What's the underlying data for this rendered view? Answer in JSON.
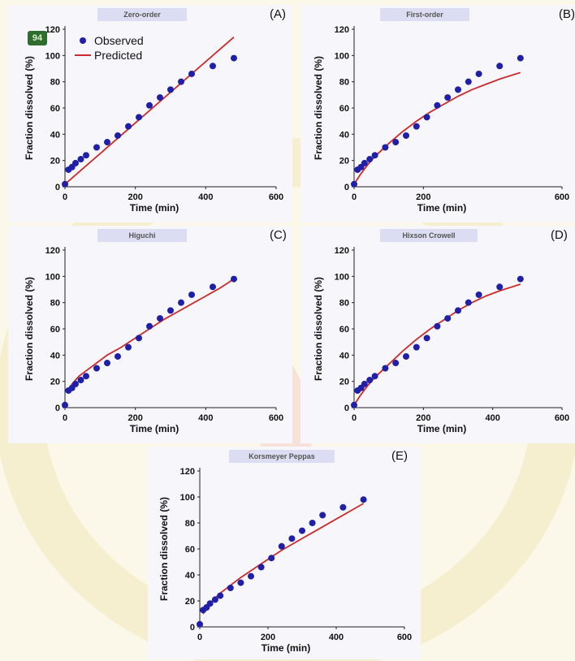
{
  "badge": "94",
  "colors": {
    "observed": "#1f1fa8",
    "predicted": "#cc2a2a",
    "panel_bg": "#f6f6fb",
    "title_bg": "#dcdcf2"
  },
  "legend": {
    "observed": "Observed",
    "predicted": "Predicted",
    "placement": "top-left"
  },
  "chart_data": [
    {
      "type": "scatter",
      "letter": "(A)",
      "title": "Zero-order",
      "xlabel": "Time (min)",
      "ylabel": "Fraction dissolved (%)",
      "xlim": [
        0,
        600
      ],
      "ylim": [
        0,
        120
      ],
      "xticks": [
        0,
        200,
        400,
        600
      ],
      "yticks": [
        0,
        20,
        40,
        60,
        80,
        100,
        120
      ],
      "series": [
        {
          "name": "Observed",
          "kind": "points",
          "x": [
            0,
            10,
            20,
            30,
            45,
            60,
            90,
            120,
            150,
            180,
            210,
            240,
            270,
            300,
            330,
            360,
            420,
            480
          ],
          "y": [
            2,
            13,
            15,
            18,
            21,
            24,
            30,
            34,
            39,
            46,
            53,
            62,
            68,
            74,
            80,
            86,
            92,
            98
          ]
        },
        {
          "name": "Predicted",
          "kind": "line",
          "x": [
            0,
            480
          ],
          "y": [
            2,
            114
          ]
        }
      ]
    },
    {
      "type": "scatter",
      "letter": "(B)",
      "title": "First-order",
      "xlabel": "Time (min)",
      "ylabel": "Fraction dissolved (%)",
      "xlim": [
        0,
        600
      ],
      "ylim": [
        0,
        120
      ],
      "xticks": [
        0,
        200,
        600
      ],
      "yticks": [
        0,
        20,
        40,
        60,
        80,
        100,
        120
      ],
      "series": [
        {
          "name": "Observed",
          "kind": "points",
          "x": [
            0,
            10,
            20,
            30,
            45,
            60,
            90,
            120,
            150,
            180,
            210,
            240,
            270,
            300,
            330,
            360,
            420,
            480
          ],
          "y": [
            2,
            13,
            15,
            18,
            21,
            24,
            30,
            34,
            39,
            46,
            53,
            62,
            68,
            74,
            80,
            86,
            92,
            98
          ]
        },
        {
          "name": "Predicted",
          "kind": "line",
          "x": [
            0,
            20,
            40,
            60,
            80,
            100,
            140,
            180,
            220,
            260,
            300,
            340,
            380,
            420,
            480
          ],
          "y": [
            2,
            10,
            17,
            23,
            28,
            33,
            42,
            50,
            57,
            63,
            69,
            74,
            78,
            82,
            87
          ]
        }
      ]
    },
    {
      "type": "scatter",
      "letter": "(C)",
      "title": "Higuchi",
      "xlabel": "Time (min)",
      "ylabel": "Fraction dissolved (%)",
      "xlim": [
        0,
        600
      ],
      "ylim": [
        0,
        120
      ],
      "xticks": [
        0,
        200,
        400,
        600
      ],
      "yticks": [
        0,
        20,
        40,
        60,
        80,
        100,
        120
      ],
      "series": [
        {
          "name": "Observed",
          "kind": "points",
          "x": [
            0,
            10,
            20,
            30,
            45,
            60,
            90,
            120,
            150,
            180,
            210,
            240,
            270,
            300,
            330,
            360,
            420,
            480
          ],
          "y": [
            2,
            13,
            15,
            18,
            21,
            24,
            30,
            34,
            39,
            46,
            53,
            62,
            68,
            74,
            80,
            86,
            92,
            98
          ]
        },
        {
          "name": "Predicted",
          "kind": "line",
          "x": [
            10,
            20,
            40,
            60,
            90,
            120,
            160,
            200,
            240,
            280,
            320,
            360,
            400,
            440,
            480
          ],
          "y": [
            12,
            18,
            24,
            28,
            34,
            40,
            46,
            53,
            60,
            67,
            73,
            79,
            85,
            91,
            98
          ]
        }
      ]
    },
    {
      "type": "scatter",
      "letter": "(D)",
      "title": "Hixson Crowell",
      "xlabel": "Time (min)",
      "ylabel": "Fraction dissolved (%)",
      "xlim": [
        0,
        600
      ],
      "ylim": [
        0,
        120
      ],
      "xticks": [
        0,
        200,
        400,
        600
      ],
      "yticks": [
        0,
        20,
        40,
        60,
        80,
        100,
        120
      ],
      "series": [
        {
          "name": "Observed",
          "kind": "points",
          "x": [
            0,
            10,
            20,
            30,
            45,
            60,
            90,
            120,
            150,
            180,
            210,
            240,
            270,
            300,
            330,
            360,
            420,
            480
          ],
          "y": [
            2,
            13,
            15,
            18,
            21,
            24,
            30,
            34,
            39,
            46,
            53,
            62,
            68,
            74,
            80,
            86,
            92,
            98
          ]
        },
        {
          "name": "Predicted",
          "kind": "line",
          "x": [
            0,
            20,
            40,
            60,
            80,
            100,
            140,
            180,
            220,
            260,
            300,
            340,
            380,
            420,
            480
          ],
          "y": [
            2,
            10,
            17,
            23,
            28,
            33,
            43,
            52,
            60,
            67,
            74,
            80,
            85,
            89,
            94
          ]
        }
      ]
    },
    {
      "type": "scatter",
      "letter": "(E)",
      "title": "Korsmeyer Peppas",
      "xlabel": "Time (min)",
      "ylabel": "Fraction dissolved (%)",
      "xlim": [
        0,
        600
      ],
      "ylim": [
        0,
        120
      ],
      "xticks": [
        0,
        200,
        400,
        600
      ],
      "yticks": [
        0,
        20,
        40,
        60,
        80,
        100,
        120
      ],
      "series": [
        {
          "name": "Observed",
          "kind": "points",
          "x": [
            0,
            10,
            20,
            30,
            45,
            60,
            90,
            120,
            150,
            180,
            210,
            240,
            270,
            300,
            330,
            360,
            420,
            480
          ],
          "y": [
            2,
            13,
            15,
            18,
            21,
            24,
            30,
            34,
            39,
            46,
            53,
            62,
            68,
            74,
            80,
            86,
            92,
            98
          ]
        },
        {
          "name": "Predicted",
          "kind": "line",
          "x": [
            10,
            20,
            40,
            60,
            90,
            120,
            160,
            200,
            240,
            280,
            320,
            360,
            400,
            440,
            480
          ],
          "y": [
            10,
            15,
            21,
            26,
            32,
            38,
            45,
            52,
            59,
            65,
            71,
            77,
            83,
            89,
            95
          ]
        }
      ]
    }
  ]
}
